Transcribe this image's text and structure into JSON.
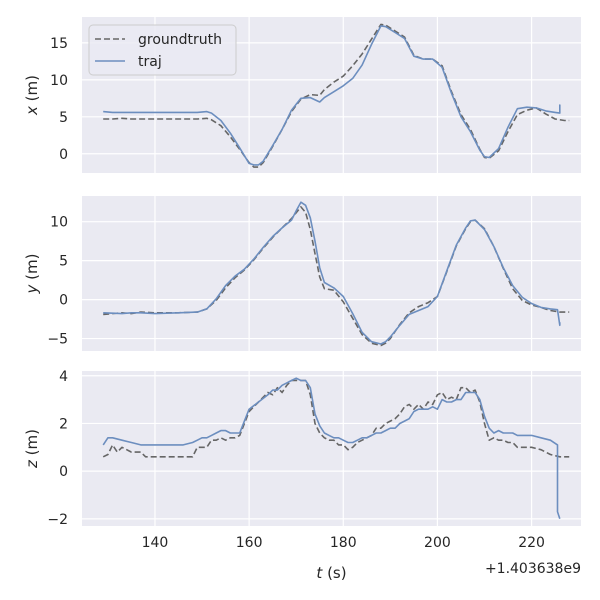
{
  "figure": {
    "background": "#ffffff",
    "axes_facecolor": "#eaeaf2",
    "grid_color": "#ffffff",
    "text_color": "#262626"
  },
  "chart_data": [
    {
      "type": "line",
      "ylabel": "x (m)",
      "ylabel_var": "x",
      "ylabel_unit": " (m)",
      "xlim": [
        124.5,
        230.5
      ],
      "ylim": [
        -2.6,
        18.5
      ],
      "yticks": [
        "0",
        "5",
        "10",
        "15"
      ],
      "ytick_values": [
        0,
        5,
        10,
        15
      ],
      "xticks": [
        140,
        160,
        180,
        200,
        220
      ],
      "grid": true,
      "legend": {
        "position": "top-left",
        "entries": [
          "groundtruth",
          "traj"
        ]
      },
      "series": [
        {
          "name": "groundtruth",
          "color": "#666666",
          "dash": "dashed",
          "x": [
            129,
            131,
            133,
            135,
            137,
            139,
            141,
            143,
            145,
            147,
            149,
            151,
            152,
            154,
            156,
            158,
            160,
            161,
            162,
            163,
            165,
            167,
            169,
            171,
            173,
            175,
            176,
            178,
            180,
            182,
            184,
            186,
            188,
            189,
            191,
            193,
            195,
            197,
            199,
            201,
            203,
            205,
            207,
            209,
            210,
            211,
            213,
            215,
            217,
            219,
            221,
            223,
            225,
            227,
            228
          ],
          "y": [
            4.7,
            4.7,
            4.8,
            4.7,
            4.7,
            4.7,
            4.7,
            4.7,
            4.7,
            4.7,
            4.7,
            4.8,
            4.6,
            3.8,
            2.3,
            0.6,
            -1.2,
            -1.8,
            -1.8,
            -1.2,
            1.0,
            3.3,
            5.7,
            7.4,
            8.0,
            7.9,
            8.7,
            9.7,
            10.5,
            11.9,
            13.5,
            15.5,
            17.5,
            17.4,
            16.6,
            15.8,
            13.3,
            12.8,
            12.8,
            11.9,
            8.4,
            5.3,
            3.3,
            0.6,
            -0.5,
            -0.6,
            0.4,
            3.0,
            5.3,
            5.9,
            6.2,
            5.4,
            4.7,
            4.5,
            4.5
          ]
        },
        {
          "name": "traj",
          "color": "#6c8ebf",
          "dash": "solid",
          "x": [
            129,
            131,
            133,
            135,
            137,
            139,
            141,
            143,
            145,
            147,
            149,
            151,
            152,
            154,
            156,
            158,
            160,
            161,
            162,
            163,
            165,
            167,
            169,
            171,
            173,
            175,
            176,
            178,
            180,
            182,
            184,
            186,
            188,
            189,
            191,
            193,
            195,
            197,
            199,
            201,
            203,
            205,
            207,
            209,
            210,
            211,
            213,
            215,
            217,
            219,
            221,
            223,
            225,
            226,
            226,
            226
          ],
          "y": [
            5.7,
            5.6,
            5.6,
            5.6,
            5.6,
            5.6,
            5.6,
            5.6,
            5.6,
            5.6,
            5.6,
            5.7,
            5.5,
            4.5,
            2.8,
            0.8,
            -1.3,
            -1.5,
            -1.5,
            -1.0,
            1.1,
            3.3,
            5.9,
            7.5,
            7.6,
            7.0,
            7.6,
            8.4,
            9.2,
            10.2,
            12.0,
            14.8,
            17.3,
            17.2,
            16.4,
            15.6,
            13.2,
            12.8,
            12.8,
            11.7,
            8.2,
            5.0,
            3.0,
            0.5,
            -0.4,
            -0.5,
            0.7,
            3.6,
            6.1,
            6.3,
            6.2,
            5.8,
            5.6,
            5.5,
            6.6,
            5.9
          ]
        }
      ]
    },
    {
      "type": "line",
      "ylabel": "y (m)",
      "ylabel_var": "y",
      "ylabel_unit": " (m)",
      "xlim": [
        124.5,
        230.5
      ],
      "ylim": [
        -6.6,
        13.3
      ],
      "yticks": [
        "−5",
        "0",
        "5",
        "10"
      ],
      "ytick_values": [
        -5,
        0,
        5,
        10
      ],
      "xticks": [
        140,
        160,
        180,
        200,
        220
      ],
      "grid": true,
      "series": [
        {
          "name": "groundtruth",
          "color": "#666666",
          "dash": "dashed",
          "x": [
            129,
            133,
            135,
            137,
            140,
            145,
            149,
            151,
            153,
            155,
            157,
            159,
            161,
            163,
            165,
            167,
            169,
            171,
            172,
            173,
            174,
            175,
            176,
            178,
            180,
            182,
            184,
            186,
            188,
            189,
            190,
            192,
            194,
            196,
            198,
            200,
            202,
            204,
            206,
            207,
            208,
            210,
            212,
            214,
            216,
            218,
            220,
            222,
            224,
            226,
            228
          ],
          "y": [
            -1.9,
            -1.7,
            -1.8,
            -1.6,
            -1.7,
            -1.7,
            -1.6,
            -1.2,
            -0.1,
            1.5,
            2.8,
            3.8,
            5.1,
            6.6,
            8.0,
            9.2,
            10.4,
            11.9,
            11.2,
            9.0,
            5.9,
            2.9,
            1.4,
            1.2,
            -0.3,
            -2.4,
            -4.5,
            -5.6,
            -5.9,
            -5.6,
            -5.0,
            -3.2,
            -1.7,
            -0.9,
            -0.4,
            0.4,
            3.6,
            6.9,
            9.1,
            10.0,
            10.2,
            9.1,
            6.8,
            4.0,
            1.4,
            -0.1,
            -0.7,
            -1.0,
            -1.4,
            -1.6,
            -1.6
          ]
        },
        {
          "name": "traj",
          "color": "#6c8ebf",
          "dash": "solid",
          "x": [
            129,
            133,
            135,
            137,
            140,
            145,
            149,
            151,
            153,
            155,
            157,
            159,
            161,
            163,
            165,
            167,
            169,
            170,
            171,
            172,
            173,
            174,
            175,
            176,
            178,
            180,
            182,
            184,
            186,
            188,
            189,
            190,
            192,
            194,
            196,
            198,
            200,
            202,
            204,
            206,
            207,
            208,
            210,
            212,
            214,
            216,
            218,
            220,
            222,
            224,
            225.5,
            226,
            226
          ],
          "y": [
            -1.7,
            -1.8,
            -1.7,
            -1.7,
            -1.8,
            -1.7,
            -1.6,
            -1.2,
            0.1,
            1.8,
            3.0,
            3.9,
            5.2,
            6.7,
            8.1,
            9.2,
            10.2,
            11.4,
            12.5,
            12.1,
            10.5,
            7.5,
            4.1,
            2.2,
            1.5,
            0.4,
            -1.8,
            -4.2,
            -5.4,
            -5.7,
            -5.4,
            -4.8,
            -3.3,
            -1.9,
            -1.4,
            -0.9,
            0.4,
            3.7,
            7.0,
            9.2,
            10.1,
            10.2,
            9.0,
            6.8,
            4.1,
            1.8,
            0.3,
            -0.5,
            -1.0,
            -1.2,
            -1.3,
            -3.3,
            -2.9
          ]
        }
      ]
    },
    {
      "type": "line",
      "ylabel": "z (m)",
      "ylabel_var": "z",
      "ylabel_unit": " (m)",
      "xlim": [
        124.5,
        230.5
      ],
      "ylim": [
        -2.3,
        4.2
      ],
      "yticks": [
        "−2",
        "0",
        "2",
        "4"
      ],
      "ytick_values": [
        -2,
        0,
        2,
        4
      ],
      "xticks": [
        140,
        160,
        180,
        200,
        220
      ],
      "xticklabels": [
        "140",
        "160",
        "180",
        "200",
        "220"
      ],
      "xlabel": "t (s)",
      "xlabel_var": "t",
      "xlabel_unit": " (s)",
      "offset_text": "+1.403638e9",
      "grid": true,
      "series": [
        {
          "name": "groundtruth",
          "color": "#666666",
          "dash": "dashed",
          "x": [
            129,
            130,
            131,
            132,
            133,
            134,
            135,
            136,
            137,
            138,
            140,
            143,
            146,
            148,
            149,
            150,
            151,
            152,
            153,
            154,
            155,
            156,
            157,
            158,
            159,
            160,
            162,
            164,
            165,
            166,
            167,
            168,
            169,
            170,
            171,
            172,
            173,
            174,
            175,
            176,
            177,
            178,
            179,
            180,
            181,
            182,
            183,
            184,
            185,
            186,
            187,
            188,
            189,
            190,
            191,
            192,
            193,
            194,
            195,
            196,
            197,
            198,
            199,
            200,
            201,
            202,
            203,
            204,
            205,
            206,
            207,
            208,
            209,
            210,
            211,
            212,
            213,
            214,
            215,
            216,
            217,
            218,
            219,
            220,
            222,
            224,
            226,
            228
          ],
          "y": [
            0.6,
            0.7,
            1.1,
            0.8,
            1.0,
            0.9,
            0.8,
            0.8,
            0.8,
            0.6,
            0.6,
            0.6,
            0.6,
            0.6,
            1.0,
            1.0,
            1.0,
            1.3,
            1.3,
            1.4,
            1.3,
            1.4,
            1.4,
            1.5,
            2.0,
            2.5,
            2.9,
            3.3,
            3.2,
            3.5,
            3.3,
            3.6,
            3.8,
            3.8,
            3.8,
            3.8,
            3.2,
            2.0,
            1.6,
            1.4,
            1.3,
            1.3,
            1.1,
            1.1,
            0.9,
            1.0,
            1.2,
            1.3,
            1.4,
            1.5,
            1.8,
            1.8,
            2.0,
            2.1,
            2.2,
            2.4,
            2.7,
            2.8,
            2.6,
            2.8,
            2.6,
            2.9,
            2.8,
            3.2,
            3.3,
            3.0,
            3.1,
            3.0,
            3.5,
            3.5,
            3.3,
            3.4,
            2.9,
            2.0,
            1.3,
            1.4,
            1.3,
            1.3,
            1.2,
            1.2,
            1.0,
            1.0,
            1.0,
            1.0,
            0.9,
            0.7,
            0.6,
            0.6
          ]
        },
        {
          "name": "traj",
          "color": "#6c8ebf",
          "dash": "solid",
          "x": [
            129,
            130,
            131,
            133,
            135,
            137,
            138,
            140,
            143,
            146,
            148,
            149,
            150,
            151,
            152,
            153,
            154,
            155,
            156,
            157,
            158,
            159,
            160,
            162,
            164,
            165,
            166,
            167,
            168,
            169,
            170,
            171,
            172,
            173,
            174,
            175,
            176,
            177,
            178,
            179,
            180,
            181,
            182,
            183,
            184,
            185,
            186,
            187,
            188,
            189,
            190,
            191,
            192,
            193,
            194,
            195,
            196,
            197,
            198,
            199,
            200,
            201,
            202,
            203,
            204,
            205,
            206,
            207,
            208,
            209,
            210,
            211,
            212,
            213,
            214,
            215,
            216,
            217,
            218,
            219,
            220,
            222,
            224,
            225.5,
            225.5,
            226
          ],
          "y": [
            1.1,
            1.4,
            1.4,
            1.3,
            1.2,
            1.1,
            1.1,
            1.1,
            1.1,
            1.1,
            1.2,
            1.3,
            1.4,
            1.4,
            1.5,
            1.6,
            1.7,
            1.7,
            1.6,
            1.6,
            1.6,
            2.1,
            2.6,
            2.9,
            3.2,
            3.4,
            3.4,
            3.6,
            3.7,
            3.8,
            3.9,
            3.8,
            3.8,
            3.5,
            2.4,
            1.9,
            1.6,
            1.5,
            1.4,
            1.4,
            1.3,
            1.2,
            1.2,
            1.3,
            1.4,
            1.4,
            1.5,
            1.6,
            1.6,
            1.7,
            1.8,
            1.8,
            2.0,
            2.1,
            2.2,
            2.5,
            2.6,
            2.6,
            2.6,
            2.7,
            2.6,
            3.0,
            2.9,
            2.9,
            3.0,
            3.0,
            3.3,
            3.3,
            3.3,
            3.0,
            2.3,
            1.8,
            1.6,
            1.7,
            1.6,
            1.6,
            1.6,
            1.5,
            1.5,
            1.5,
            1.5,
            1.4,
            1.3,
            1.1,
            -1.7,
            -2.0
          ]
        }
      ]
    }
  ]
}
